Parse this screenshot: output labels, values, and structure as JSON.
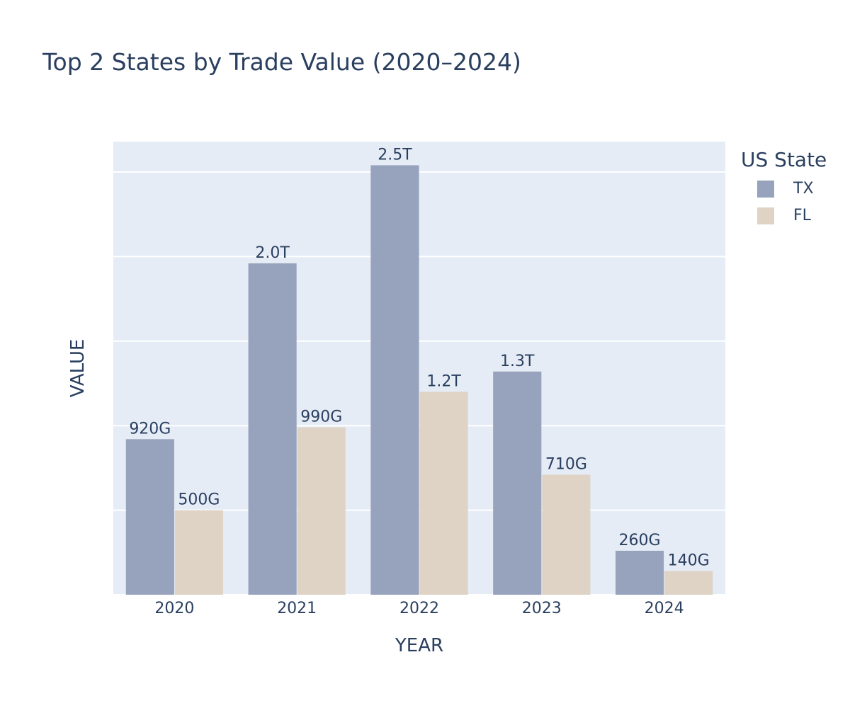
{
  "chart_data": {
    "type": "bar",
    "title": "Top 2 States by Trade Value (2020–2024)",
    "xlabel": "YEAR",
    "ylabel": "VALUE",
    "categories": [
      "2020",
      "2021",
      "2022",
      "2023",
      "2024"
    ],
    "series": [
      {
        "name": "TX",
        "color": "#97a2bc",
        "values": [
          920000000000,
          1960000000000,
          2540000000000,
          1320000000000,
          260000000000
        ],
        "labels": [
          "920G",
          "2.0T",
          "2.5T",
          "1.3T",
          "260G"
        ]
      },
      {
        "name": "FL",
        "color": "#ded3c5",
        "values": [
          500000000000,
          990000000000,
          1200000000000,
          710000000000,
          140000000000
        ],
        "labels": [
          "500G",
          "990G",
          "1.2T",
          "710G",
          "140G"
        ]
      }
    ],
    "ylim": [
      0,
      2680000000000
    ],
    "y_gridlines": [
      0,
      500000000000,
      1000000000000,
      1500000000000,
      2000000000000,
      2500000000000
    ],
    "y_tick_labels_visible": false,
    "grid": true,
    "plot_background": "#e5ecf6",
    "legend_title": "US State",
    "legend_placement": "top-right outside"
  }
}
